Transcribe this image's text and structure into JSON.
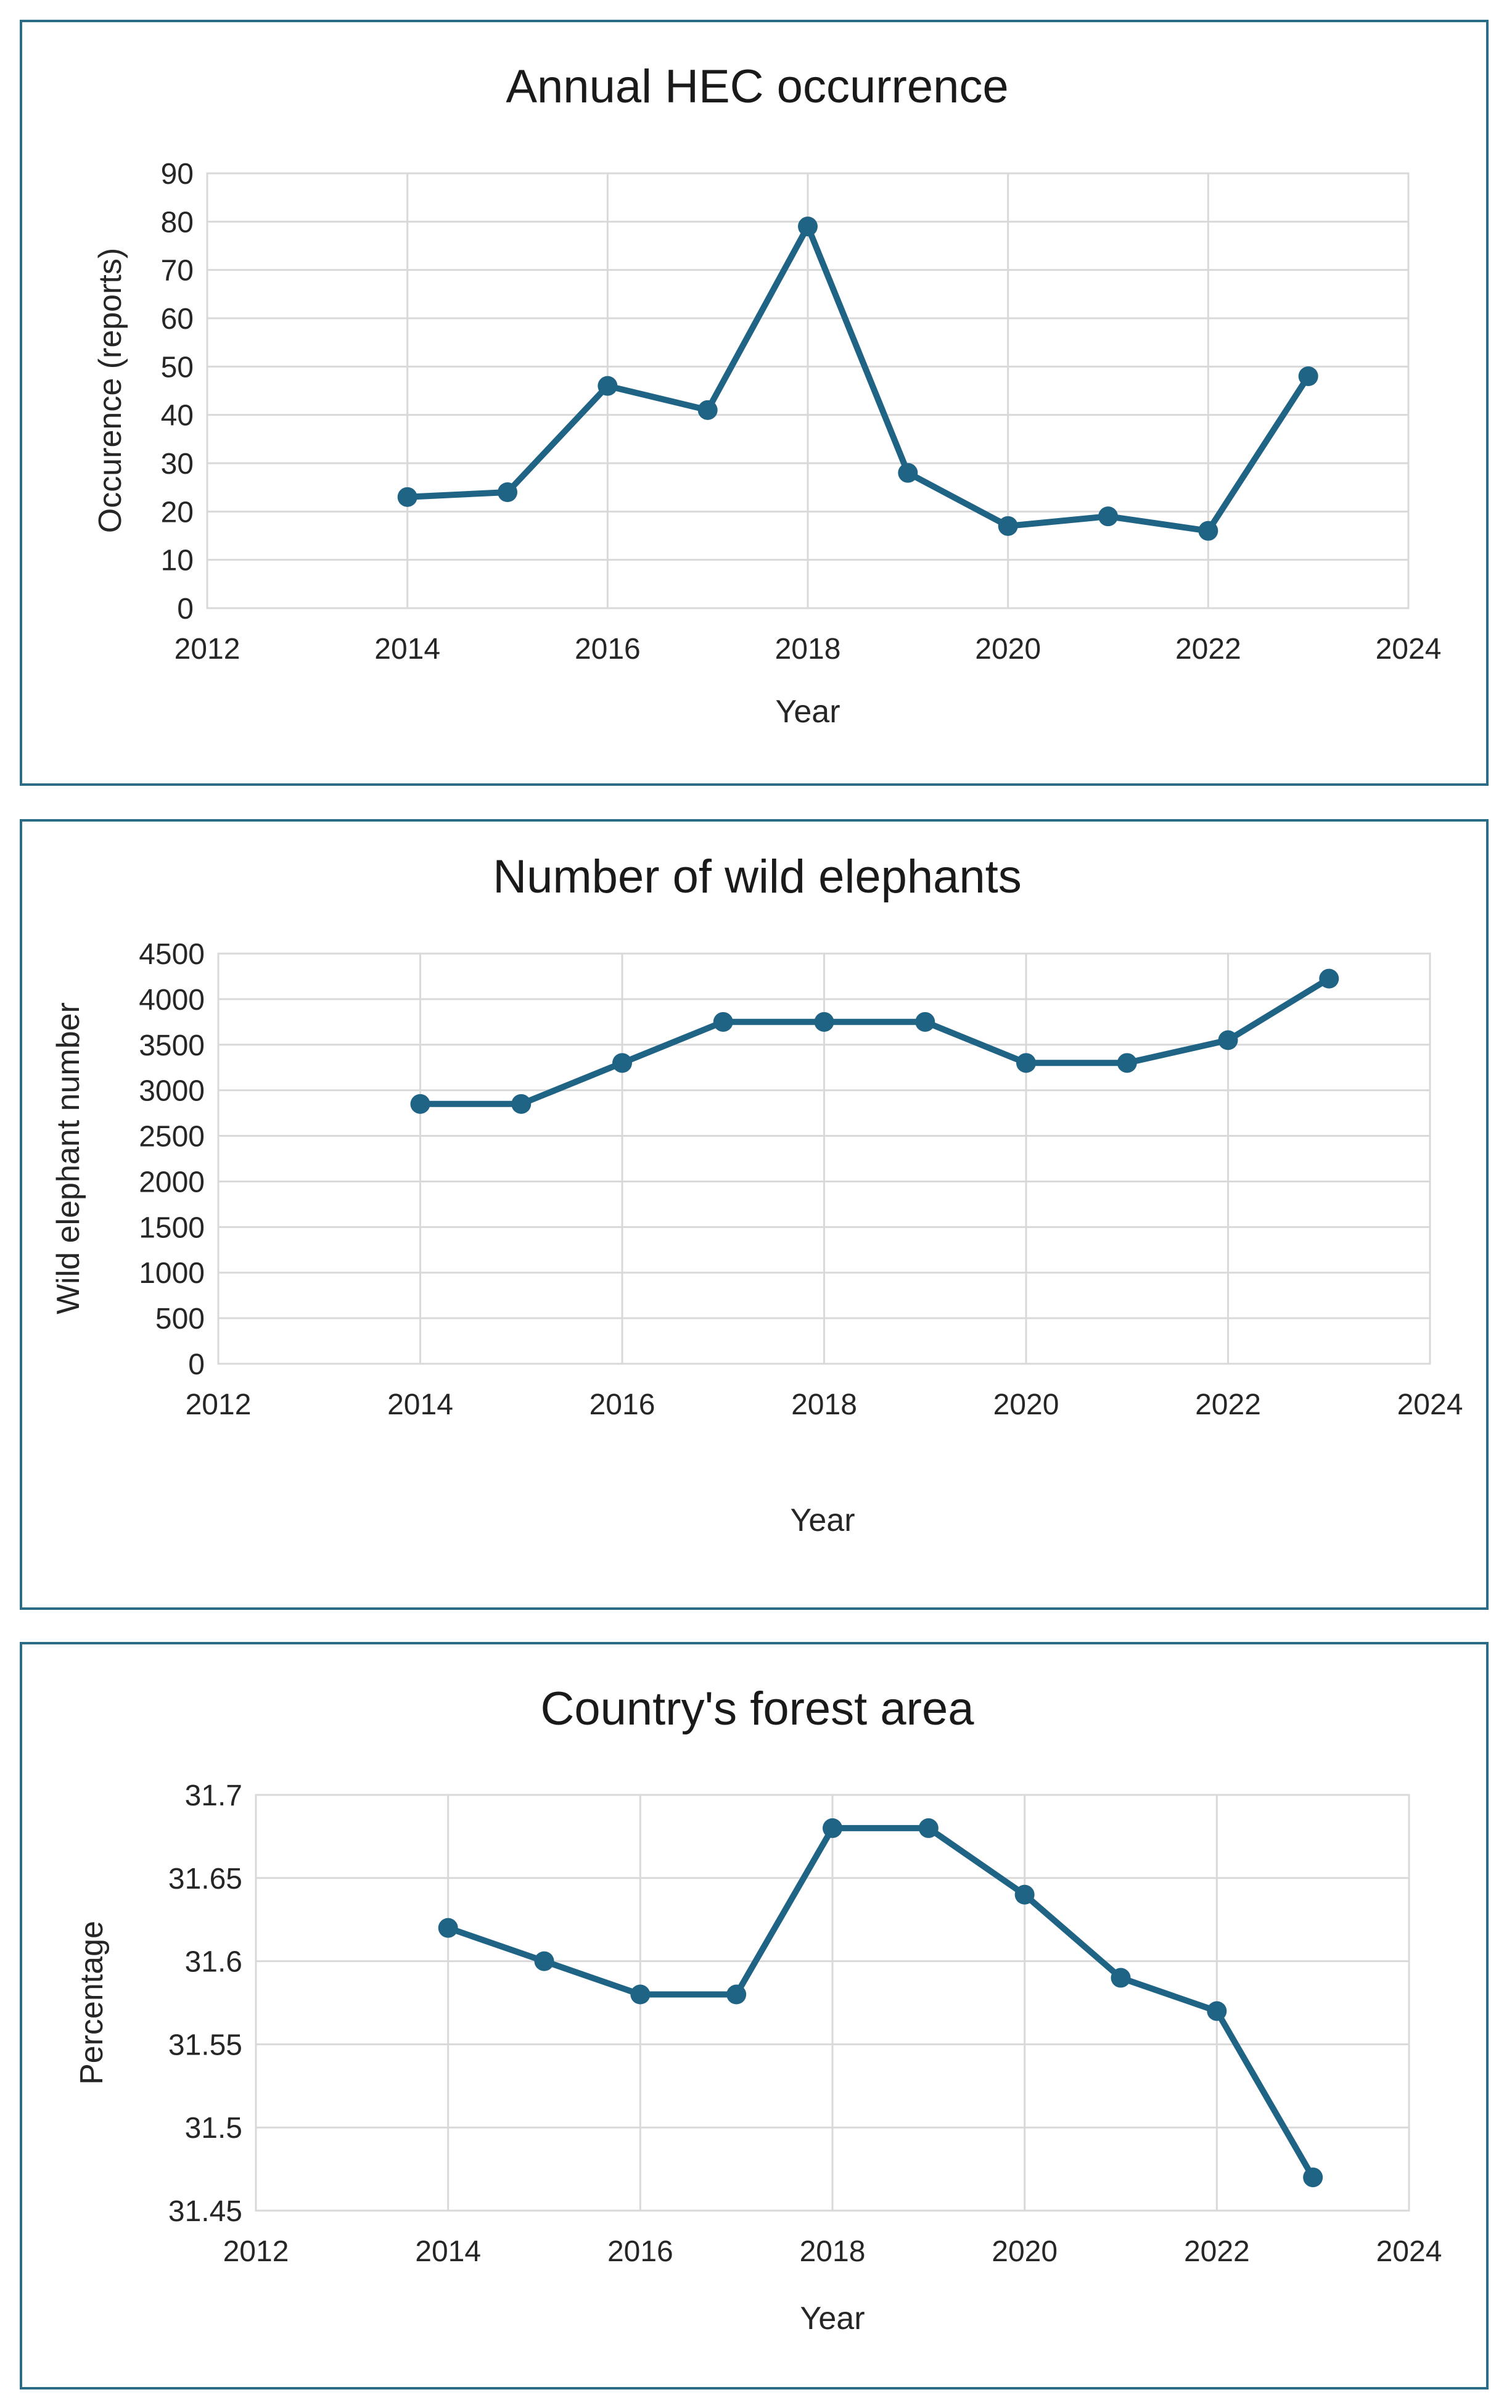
{
  "chart_data": [
    {
      "type": "line",
      "title": "Annual HEC occurrence",
      "xlabel": "Year",
      "ylabel": "Occurence (reports)",
      "xlim": [
        2012,
        2024
      ],
      "xticks": [
        2012,
        2014,
        2016,
        2018,
        2020,
        2022,
        2024
      ],
      "xtick_labels": [
        "2012",
        "2014",
        "2016",
        "2018",
        "2020",
        "2022",
        "2024"
      ],
      "ylim": [
        0,
        90
      ],
      "yticks": [
        0,
        10,
        20,
        30,
        40,
        50,
        60,
        70,
        80,
        90
      ],
      "ytick_labels": [
        "0",
        "10",
        "20",
        "30",
        "40",
        "50",
        "60",
        "70",
        "80",
        "90"
      ],
      "grid": true,
      "color": "#1f6385",
      "x": [
        2014,
        2015,
        2016,
        2017,
        2018,
        2019,
        2020,
        2021,
        2022,
        2023
      ],
      "values": [
        23,
        24,
        46,
        41,
        79,
        28,
        17,
        19,
        16,
        48
      ]
    },
    {
      "type": "line",
      "title": "Number of wild elephants",
      "xlabel": "Year",
      "ylabel": "Wild elephant number",
      "xlim": [
        2012,
        2024
      ],
      "xticks": [
        2012,
        2014,
        2016,
        2018,
        2020,
        2022,
        2024
      ],
      "xtick_labels": [
        "2012",
        "2014",
        "2016",
        "2018",
        "2020",
        "2022",
        "2024"
      ],
      "ylim": [
        0,
        4500
      ],
      "yticks": [
        0,
        500,
        1000,
        1500,
        2000,
        2500,
        3000,
        3500,
        4000,
        4500
      ],
      "ytick_labels": [
        "0",
        "500",
        "1000",
        "1500",
        "2000",
        "2500",
        "3000",
        "3500",
        "4000",
        "4500"
      ],
      "grid": true,
      "color": "#1f6385",
      "x": [
        2014,
        2015,
        2016,
        2017,
        2018,
        2019,
        2020,
        2021,
        2022,
        2023
      ],
      "values": [
        2850,
        2850,
        3300,
        3750,
        3750,
        3750,
        3300,
        3300,
        3550,
        4225
      ]
    },
    {
      "type": "line",
      "title": "Country's forest area",
      "xlabel": "Year",
      "ylabel": "Percentage",
      "xlim": [
        2012,
        2024
      ],
      "xticks": [
        2012,
        2014,
        2016,
        2018,
        2020,
        2022,
        2024
      ],
      "xtick_labels": [
        "2012",
        "2014",
        "2016",
        "2018",
        "2020",
        "2022",
        "2024"
      ],
      "ylim": [
        31.45,
        31.7
      ],
      "yticks": [
        31.45,
        31.5,
        31.55,
        31.6,
        31.65,
        31.7
      ],
      "ytick_labels": [
        "31.45",
        "31.5",
        "31.55",
        "31.6",
        "31.65",
        "31.7"
      ],
      "grid": true,
      "color": "#1f6385",
      "x": [
        2014,
        2015,
        2016,
        2017,
        2018,
        2019,
        2020,
        2021,
        2022,
        2023
      ],
      "values": [
        31.62,
        31.6,
        31.58,
        31.58,
        31.68,
        31.68,
        31.64,
        31.59,
        31.57,
        31.47
      ]
    }
  ]
}
